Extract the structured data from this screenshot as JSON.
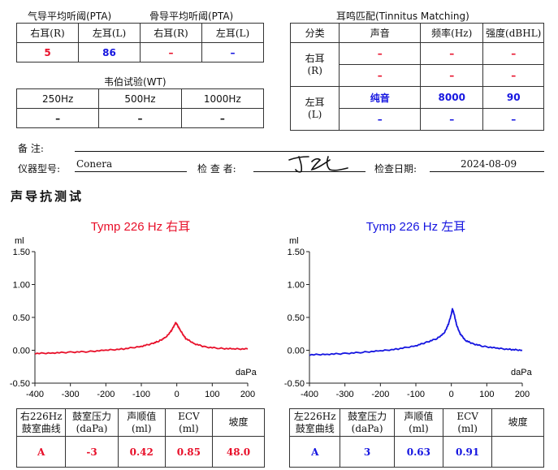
{
  "pta": {
    "air_title": "气导平均听阈(PTA)",
    "bone_title": "骨导平均听阈(PTA)",
    "headers": [
      "右耳(R)",
      "左耳(L)",
      "右耳(R)",
      "左耳(L)"
    ],
    "values": [
      "5",
      "86",
      "–",
      "–"
    ]
  },
  "weber": {
    "title": "韦伯试验(WT)",
    "headers": [
      "250Hz",
      "500Hz",
      "1000Hz"
    ],
    "values": [
      "–",
      "–",
      "–"
    ]
  },
  "tinnitus": {
    "title": "耳鸣匹配(Tinnitus Matching)",
    "headers": [
      "分类",
      "声音",
      "频率(Hz)",
      "强度(dBHL)"
    ],
    "right_label": "右耳",
    "right_sub": "(R)",
    "left_label": "左耳",
    "left_sub": "(L)",
    "right_rows": [
      [
        "–",
        "–",
        "–"
      ],
      [
        "–",
        "–",
        "–"
      ]
    ],
    "left_rows": [
      [
        "纯音",
        "8000",
        "90"
      ],
      [
        "–",
        "–",
        "–"
      ]
    ]
  },
  "info": {
    "remark_label": "备    注:",
    "remark_value": "",
    "device_label": "仪器型号:",
    "device_value": "Conera",
    "examiner_label": "检 查 者:",
    "date_label": "检查日期:",
    "date_value": "2024-08-09"
  },
  "section_title": "声导抗测试",
  "colors": {
    "right": "#e8102a",
    "left": "#1515e0"
  },
  "chart_data": [
    {
      "type": "line",
      "title": "Tymp 226 Hz 右耳",
      "ylabel": "ml",
      "xlabel": "daPa",
      "xlim": [
        -400,
        200
      ],
      "ylim": [
        -0.5,
        1.5
      ],
      "xticks": [
        "-400",
        "-300",
        "-200",
        "-100",
        "0",
        "100",
        "200"
      ],
      "yticks": [
        "1.50",
        "1.00",
        "0.50",
        "0.00",
        "-0.50"
      ],
      "series": [
        {
          "x": [
            -400,
            -350,
            -300,
            -250,
            -200,
            -150,
            -100,
            -70,
            -50,
            -30,
            -15,
            -5,
            -3,
            0,
            10,
            25,
            50,
            80,
            120,
            160,
            200
          ],
          "y": [
            -0.05,
            -0.04,
            -0.03,
            -0.02,
            0.0,
            0.02,
            0.06,
            0.1,
            0.14,
            0.2,
            0.3,
            0.4,
            0.42,
            0.4,
            0.3,
            0.18,
            0.1,
            0.05,
            0.03,
            0.02,
            0.02
          ]
        }
      ]
    },
    {
      "type": "line",
      "title": "Tymp 226 Hz 左耳",
      "ylabel": "ml",
      "xlabel": "daPa",
      "xlim": [
        -400,
        200
      ],
      "ylim": [
        -0.5,
        1.5
      ],
      "xticks": [
        "-400",
        "-300",
        "-200",
        "-100",
        "0",
        "100",
        "200"
      ],
      "yticks": [
        "1.50",
        "1.00",
        "0.50",
        "0.00",
        "-0.50"
      ],
      "series": [
        {
          "x": [
            -400,
            -350,
            -300,
            -250,
            -200,
            -150,
            -100,
            -70,
            -40,
            -20,
            -8,
            0,
            3,
            8,
            15,
            25,
            40,
            60,
            90,
            130,
            170,
            200
          ],
          "y": [
            -0.07,
            -0.06,
            -0.05,
            -0.03,
            -0.01,
            0.02,
            0.07,
            0.12,
            0.18,
            0.26,
            0.4,
            0.55,
            0.63,
            0.55,
            0.38,
            0.25,
            0.15,
            0.1,
            0.06,
            0.03,
            0.01,
            0.0
          ]
        }
      ]
    }
  ],
  "tymp_tables": {
    "headers": [
      "鼓室压力\n(daPa)",
      "声顺值\n(ml)",
      "ECV\n(ml)",
      "坡度"
    ],
    "right_head": "右226Hz\n鼓室曲线",
    "left_head": "左226Hz\n鼓室曲线",
    "right_values": [
      "A",
      "-3",
      "0.42",
      "0.85",
      "48.0"
    ],
    "left_values": [
      "A",
      "3",
      "0.63",
      "0.91",
      ""
    ]
  }
}
